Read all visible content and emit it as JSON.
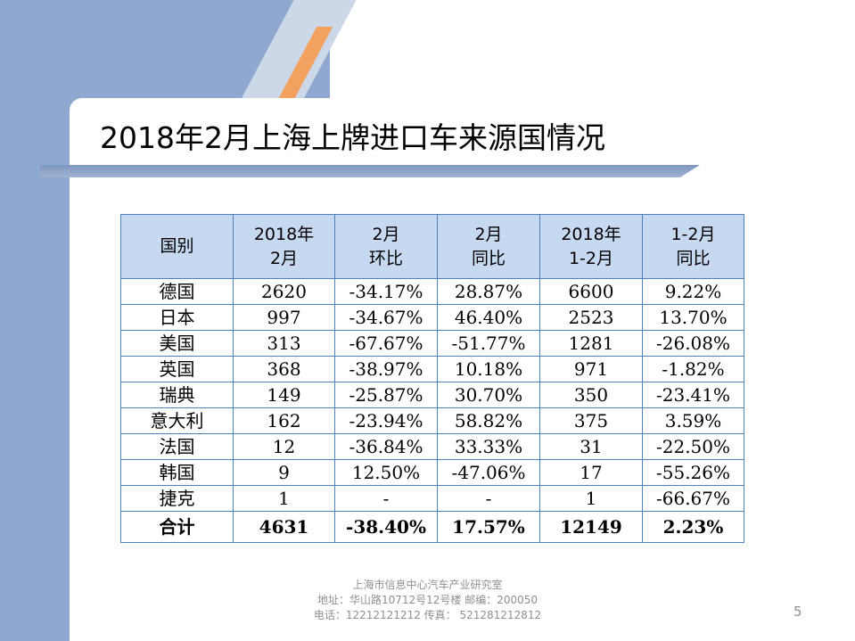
{
  "title": "2018年2月上海上牌进口车来源国情况",
  "table": {
    "headers": [
      {
        "line1": "国别",
        "line2": ""
      },
      {
        "line1": "2018年",
        "line2": "2月"
      },
      {
        "line1": "2月",
        "line2": "环比"
      },
      {
        "line1": "2月",
        "line2": "同比"
      },
      {
        "line1": "2018年",
        "line2": "1-2月"
      },
      {
        "line1": "1-2月",
        "line2": "同比"
      }
    ],
    "rows": [
      [
        "德国",
        "2620",
        "-34.17%",
        "28.87%",
        "6600",
        "9.22%"
      ],
      [
        "日本",
        "997",
        "-34.67%",
        "46.40%",
        "2523",
        "13.70%"
      ],
      [
        "美国",
        "313",
        "-67.67%",
        "-51.77%",
        "1281",
        "-26.08%"
      ],
      [
        "英国",
        "368",
        "-38.97%",
        "10.18%",
        "971",
        "-1.82%"
      ],
      [
        "瑞典",
        "149",
        "-25.87%",
        "30.70%",
        "350",
        "-23.41%"
      ],
      [
        "意大利",
        "162",
        "-23.94%",
        "58.82%",
        "375",
        "3.59%"
      ],
      [
        "法国",
        "12",
        "-36.84%",
        "33.33%",
        "31",
        "-22.50%"
      ],
      [
        "韩国",
        "9",
        "12.50%",
        "-47.06%",
        "17",
        "-55.26%"
      ],
      [
        "捷克",
        "1",
        "-",
        "-",
        "1",
        "-66.67%"
      ]
    ],
    "total": [
      "合计",
      "4631",
      "-38.40%",
      "17.57%",
      "12149",
      "2.23%"
    ]
  },
  "footer": {
    "org": "上海市信息中心汽车产业研究室",
    "address": "地址：华山路10712号12号楼    邮编：200050",
    "contact": "电话：12212121212  传真：  521281212812"
  },
  "page_number": "5",
  "colors": {
    "header_fill": "#c6d9f1",
    "border": "#4f81bd",
    "side_panel": "#8ea8cf",
    "accent_stripe": "#f2a15e"
  }
}
